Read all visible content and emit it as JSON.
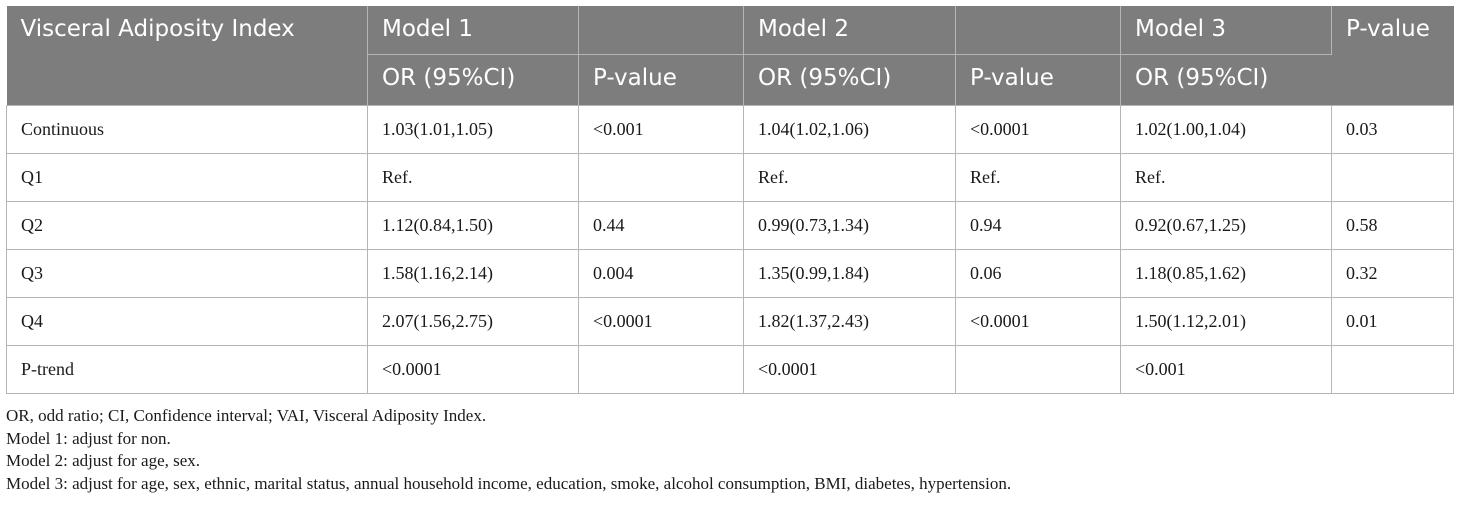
{
  "table": {
    "header_row1": [
      "Visceral Adiposity Index",
      "Model 1",
      "",
      "Model 2",
      "",
      "Model 3",
      "P-value"
    ],
    "header_row2": [
      "OR (95%CI)",
      "P-value",
      "OR (95%CI)",
      "P-value",
      "OR (95%CI)"
    ],
    "rows": [
      [
        "Continuous",
        "1.03(1.01,1.05)",
        "<0.001",
        "1.04(1.02,1.06)",
        "<0.0001",
        "1.02(1.00,1.04)",
        "0.03"
      ],
      [
        "Q1",
        "Ref.",
        "",
        "Ref.",
        "Ref.",
        "Ref.",
        ""
      ],
      [
        "Q2",
        "1.12(0.84,1.50)",
        "0.44",
        "0.99(0.73,1.34)",
        "0.94",
        "0.92(0.67,1.25)",
        "0.58"
      ],
      [
        "Q3",
        "1.58(1.16,2.14)",
        "0.004",
        "1.35(0.99,1.84)",
        "0.06",
        "1.18(0.85,1.62)",
        "0.32"
      ],
      [
        "Q4",
        "2.07(1.56,2.75)",
        "<0.0001",
        "1.82(1.37,2.43)",
        "<0.0001",
        "1.50(1.12,2.01)",
        "0.01"
      ],
      [
        "P-trend",
        "<0.0001",
        "",
        "<0.0001",
        "",
        "<0.001",
        ""
      ]
    ]
  },
  "notes": [
    "OR, odd ratio; CI, Confidence interval; VAI, Visceral Adiposity Index.",
    "Model 1: adjust for non.",
    "Model 2: adjust for age, sex.",
    "Model 3: adjust for age, sex, ethnic, marital status, annual household income, education, smoke, alcohol consumption, BMI, diabetes, hypertension."
  ],
  "colors": {
    "header_bg": "#7d7d7d",
    "header_text": "#ffffff",
    "grid": "#b5b5b5"
  }
}
